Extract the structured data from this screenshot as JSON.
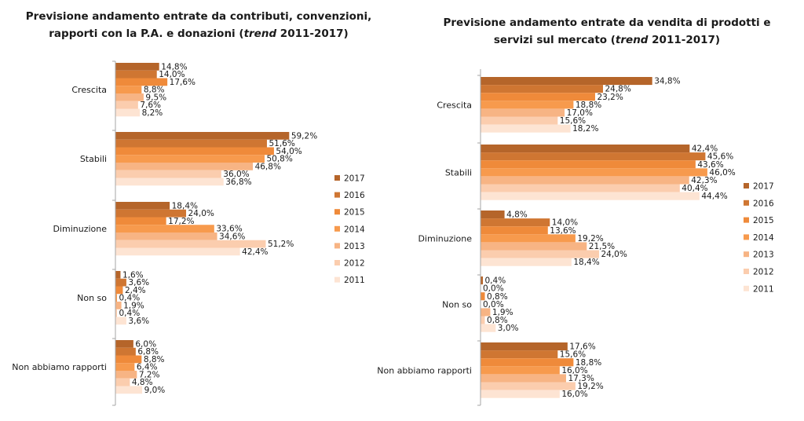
{
  "chart_data": [
    {
      "type": "bar",
      "orientation": "horizontal",
      "title": {
        "before": "Previsione andamento entrate da contributi, convenzioni,",
        "line2_before": "rapporti con la P.A. e donazioni (",
        "italic": "trend",
        "after": " 2011-2017)"
      },
      "categories": [
        "Crescita",
        "Stabili",
        "Diminuzione",
        "Non so",
        "Non abbiamo rapporti"
      ],
      "unit": "%",
      "legend_position": "right",
      "series": [
        {
          "name": "2017",
          "color": "#b5652a",
          "values": [
            14.8,
            59.2,
            18.4,
            1.6,
            6.0
          ]
        },
        {
          "name": "2016",
          "color": "#cf7632",
          "values": [
            14.0,
            51.6,
            24.0,
            3.6,
            6.8
          ]
        },
        {
          "name": "2015",
          "color": "#ef8a3a",
          "values": [
            17.6,
            54.0,
            17.2,
            2.4,
            8.8
          ]
        },
        {
          "name": "2014",
          "color": "#f79a4d",
          "values": [
            8.8,
            50.8,
            33.6,
            0.4,
            6.4
          ]
        },
        {
          "name": "2013",
          "color": "#f7b484",
          "values": [
            9.5,
            46.8,
            34.6,
            1.9,
            7.2
          ]
        },
        {
          "name": "2012",
          "color": "#fbcdae",
          "values": [
            7.6,
            36.0,
            51.2,
            0.4,
            4.8
          ]
        },
        {
          "name": "2011",
          "color": "#fde4d3",
          "values": [
            8.2,
            36.8,
            42.4,
            3.6,
            9.0
          ]
        }
      ],
      "value_labels": [
        [
          "14,8%",
          "59,2%",
          "18,4%",
          "1,6%",
          "6,0%"
        ],
        [
          "14,0%",
          "51,6%",
          "24,0%",
          "3,6%",
          "6,8%"
        ],
        [
          "17,6%",
          "54,0%",
          "17,2%",
          "2,4%",
          "8,8%"
        ],
        [
          "8,8%",
          "50,8%",
          "33,6%",
          "0,4%",
          "6,4%"
        ],
        [
          "9,5%",
          "46,8%",
          "34,6%",
          "1,9%",
          "7,2%"
        ],
        [
          "7,6%",
          "36,0%",
          "51,2%",
          "0,4%",
          "4,8%"
        ],
        [
          "8,2%",
          "36,8%",
          "42,4%",
          "3,6%",
          "9,0%"
        ]
      ]
    },
    {
      "type": "bar",
      "orientation": "horizontal",
      "title": {
        "before": "Previsione andamento entrate da vendita di prodotti e",
        "line2_before": "servizi sul mercato (",
        "italic": "trend",
        "after": " 2011-2017)"
      },
      "categories": [
        "Crescita",
        "Stabili",
        "Diminuzione",
        "Non so",
        "Non abbiamo rapporti"
      ],
      "unit": "%",
      "legend_position": "right",
      "series": [
        {
          "name": "2017",
          "color": "#b5652a",
          "values": [
            34.8,
            42.4,
            4.8,
            0.4,
            17.6
          ]
        },
        {
          "name": "2016",
          "color": "#cf7632",
          "values": [
            24.8,
            45.6,
            14.0,
            0.0,
            15.6
          ]
        },
        {
          "name": "2015",
          "color": "#ef8a3a",
          "values": [
            23.2,
            43.6,
            13.6,
            0.8,
            18.8
          ]
        },
        {
          "name": "2014",
          "color": "#f79a4d",
          "values": [
            18.8,
            46.0,
            19.2,
            0.0,
            16.0
          ]
        },
        {
          "name": "2013",
          "color": "#f7b484",
          "values": [
            17.0,
            42.3,
            21.5,
            1.9,
            17.3
          ]
        },
        {
          "name": "2012",
          "color": "#fbcdae",
          "values": [
            15.6,
            40.4,
            24.0,
            0.8,
            19.2
          ]
        },
        {
          "name": "2011",
          "color": "#fde4d3",
          "values": [
            18.2,
            44.4,
            18.4,
            3.0,
            16.0
          ]
        }
      ],
      "value_labels": [
        [
          "34,8%",
          "42,4%",
          "4,8%",
          "0,4%",
          "17,6%"
        ],
        [
          "24,8%",
          "45,6%",
          "14,0%",
          "0,0%",
          "15,6%"
        ],
        [
          "23,2%",
          "43,6%",
          "13,6%",
          "0,8%",
          "18,8%"
        ],
        [
          "18,8%",
          "46,0%",
          "19,2%",
          "0,0%",
          "16,0%"
        ],
        [
          "17,0%",
          "42,3%",
          "21,5%",
          "1,9%",
          "17,3%"
        ],
        [
          "15,6%",
          "40,4%",
          "24,0%",
          "0,8%",
          "19,2%"
        ],
        [
          "18,2%",
          "44,4%",
          "18,4%",
          "3,0%",
          "16,0%"
        ]
      ]
    }
  ]
}
